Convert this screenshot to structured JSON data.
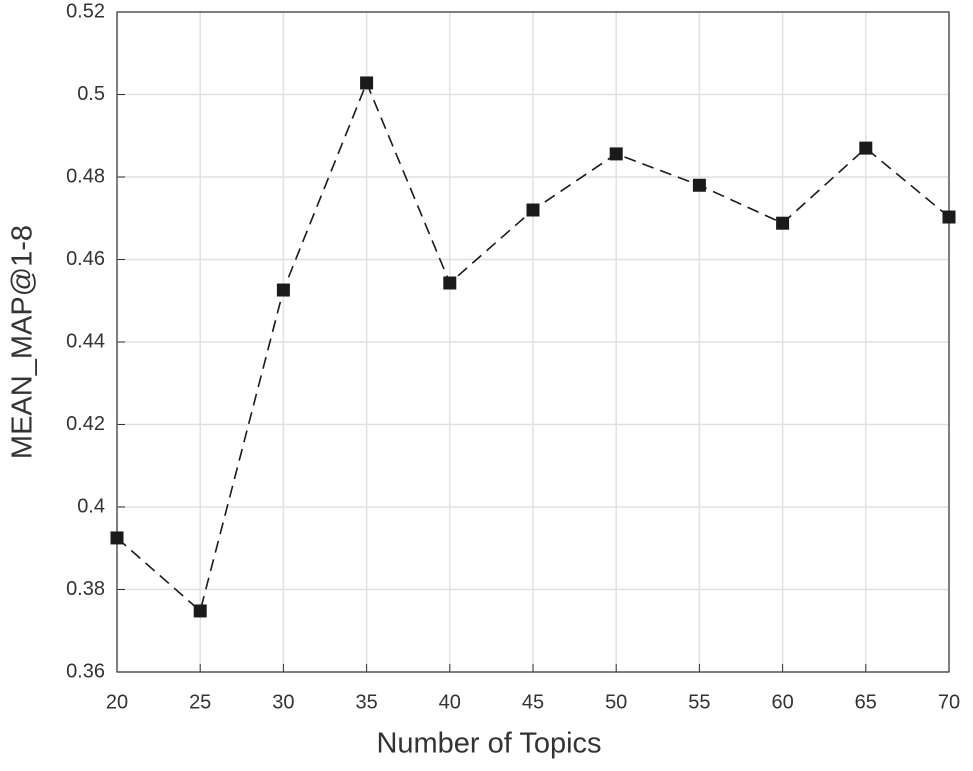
{
  "chart_data": {
    "type": "line",
    "xlabel": "Number of Topics",
    "ylabel": "MEAN_MAP@1-8",
    "x": [
      20,
      25,
      30,
      35,
      40,
      45,
      50,
      55,
      60,
      65,
      70
    ],
    "series": [
      {
        "color": "#1a1a1a",
        "values": [
          0.3925,
          0.3748,
          0.4526,
          0.5028,
          0.4543,
          0.472,
          0.4856,
          0.478,
          0.4688,
          0.487,
          0.4703
        ]
      }
    ],
    "xlim": [
      20,
      70
    ],
    "xticks": [
      20,
      25,
      30,
      35,
      40,
      45,
      50,
      55,
      60,
      65,
      70
    ],
    "ylim": [
      0.36,
      0.52
    ],
    "yticks": [
      0.36,
      0.38,
      0.4,
      0.42,
      0.44,
      0.46,
      0.48,
      0.5,
      0.52
    ],
    "grid": true
  }
}
